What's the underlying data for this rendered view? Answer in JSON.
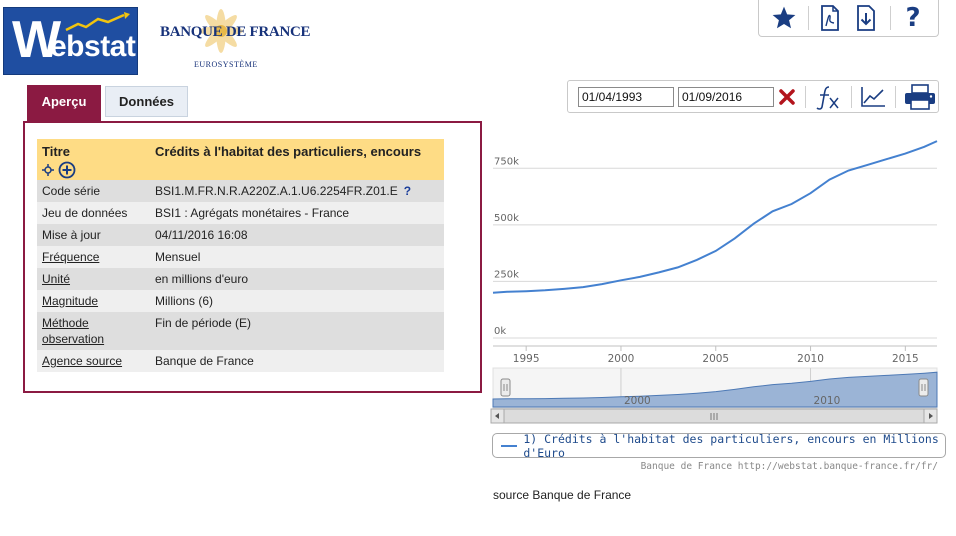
{
  "logos": {
    "webstat_w": "W",
    "webstat_rest": "ebstat",
    "bdf_name": "BANQUE DE FRANCE",
    "bdf_sub": "EUROSYSTÈME"
  },
  "toolbar": {
    "icons": [
      "star-icon",
      "pdf-export-icon",
      "download-icon",
      "help-icon"
    ],
    "help_label": "?"
  },
  "tabs": [
    {
      "label": "Aperçu",
      "active": true
    },
    {
      "label": "Données",
      "active": false
    }
  ],
  "series_info": {
    "title_label": "Titre",
    "title_value": "Crédits à l'habitat des particuliers, encours",
    "rows": [
      {
        "label": "Code série",
        "value": "BSI1.M.FR.N.R.A220Z.A.1.U6.2254FR.Z01.E",
        "link": false,
        "help": "?"
      },
      {
        "label": "Jeu de données",
        "value": "BSI1 : Agrégats monétaires - France",
        "link": false
      },
      {
        "label": "Mise à jour",
        "value": "04/11/2016 16:08",
        "link": false
      },
      {
        "label": "Fréquence",
        "value": "Mensuel",
        "link": true
      },
      {
        "label": "Unité",
        "value": "en millions d'euro",
        "link": true
      },
      {
        "label": "Magnitude",
        "value": "Millions (6)",
        "link": true
      },
      {
        "label_line1": "Méthode",
        "label_line2": "observation",
        "value": "Fin de période (E)",
        "link": true
      },
      {
        "label": "Agence source",
        "value": "Banque de France",
        "link": true
      }
    ]
  },
  "date_range": {
    "start": "01/04/1993",
    "end": "01/09/2016"
  },
  "chart_data": {
    "type": "line",
    "x_range": [
      1993.25,
      2016.67
    ],
    "ylim": [
      0,
      875000
    ],
    "y_ticks": [
      0,
      250000,
      500000,
      750000
    ],
    "y_tick_labels": [
      "0k",
      "250k",
      "500k",
      "750k"
    ],
    "x_ticks": [
      1995,
      2000,
      2005,
      2010,
      2015
    ],
    "x_tick_labels": [
      "1995",
      "2000",
      "2005",
      "2010",
      "2015"
    ],
    "grid": "horizontal",
    "series": [
      {
        "name": "1) Crédits à l'habitat des particuliers, encours en Millions d'Euro",
        "color": "#4481d0",
        "x": [
          1993.25,
          1994,
          1995,
          1996,
          1997,
          1998,
          1999,
          2000,
          2001,
          2002,
          2003,
          2004,
          2005,
          2006,
          2007,
          2008,
          2009,
          2010,
          2011,
          2012,
          2013,
          2014,
          2015,
          2016,
          2016.67
        ],
        "y": [
          200000,
          204000,
          207000,
          211000,
          217000,
          225000,
          238000,
          255000,
          270000,
          290000,
          312000,
          345000,
          385000,
          440000,
          505000,
          560000,
          592000,
          640000,
          700000,
          740000,
          765000,
          790000,
          815000,
          845000,
          870000
        ]
      }
    ]
  },
  "navigator": {
    "x_tick_labels": [
      "2000",
      "2010"
    ],
    "x_ticks": [
      2000,
      2010
    ]
  },
  "legend": {
    "entry": "1) Crédits à l'habitat des particuliers, encours en Millions d'Euro"
  },
  "credit": "Banque de France http://webstat.banque-france.fr/fr/",
  "source_note": "source Banque de France"
}
